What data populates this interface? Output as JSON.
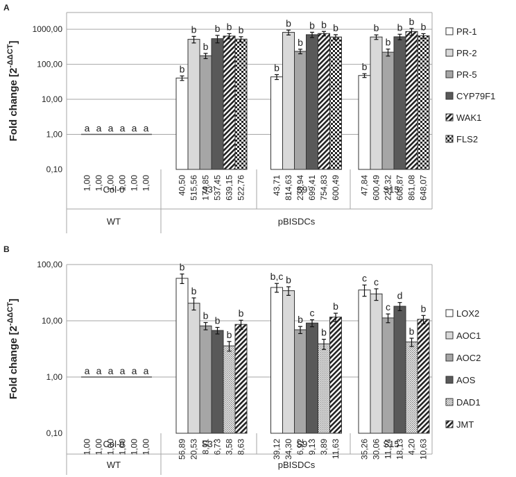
{
  "chart_data": [
    {
      "type": "bar",
      "panel": "A",
      "ylabel": "Fold change",
      "ylabel_formula": "[2^-ΔΔCT]",
      "yscale": "log",
      "ylim": [
        0.1,
        3000
      ],
      "yticks": [
        0.1,
        1,
        10,
        100,
        1000
      ],
      "ytick_labels": [
        "0,10",
        "1,00",
        "10,00",
        "100,00",
        "1000,00"
      ],
      "legend_position": "right",
      "lines": [
        "Col-0",
        "S3´",
        "S9´",
        "S15"
      ],
      "groups": [
        "WT",
        "pBISDCs"
      ],
      "series": [
        {
          "name": "PR-1",
          "fill": "white",
          "values": [
            1.0,
            40.5,
            43.71,
            47.84
          ],
          "labels": [
            "1,00",
            "40,50",
            "43,71",
            "47,84"
          ],
          "errors": [
            0,
            6,
            7,
            6
          ],
          "letters": [
            "a",
            "b",
            "b",
            "b"
          ]
        },
        {
          "name": "PR-2",
          "fill": "lightgray",
          "values": [
            1.0,
            515.56,
            814.63,
            600.49
          ],
          "labels": [
            "1,00",
            "515,56",
            "814,63",
            "600,49"
          ],
          "errors": [
            0,
            110,
            130,
            90
          ],
          "letters": [
            "a",
            "b",
            "b",
            "b"
          ]
        },
        {
          "name": "PR-5",
          "fill": "gray",
          "values": [
            1.0,
            174.85,
            233.94,
            221.32
          ],
          "labels": [
            "1,00",
            "174,85",
            "233,94",
            "221,32"
          ],
          "errors": [
            0,
            30,
            35,
            50
          ],
          "letters": [
            "a",
            "b",
            "b",
            "b"
          ]
        },
        {
          "name": "CYP79F1",
          "fill": "darkgray",
          "values": [
            1.0,
            537.45,
            699.41,
            608.87
          ],
          "labels": [
            "1,00",
            "537,45",
            "699,41",
            "608,87"
          ],
          "errors": [
            0,
            130,
            120,
            110
          ],
          "letters": [
            "a",
            "b",
            "b",
            "b"
          ]
        },
        {
          "name": "WAK1",
          "fill": "hatch",
          "values": [
            1.0,
            639.15,
            754.83,
            861.08
          ],
          "labels": [
            "1,00",
            "639,15",
            "754,83",
            "861,08"
          ],
          "errors": [
            0,
            110,
            110,
            190
          ],
          "letters": [
            "a",
            "b",
            "b",
            "b"
          ]
        },
        {
          "name": "FLS2",
          "fill": "check",
          "values": [
            1.0,
            522.76,
            600.49,
            648.07
          ],
          "labels": [
            "1,00",
            "522,76",
            "600,49",
            "648,07"
          ],
          "errors": [
            0,
            90,
            100,
            100
          ],
          "letters": [
            "a",
            "b",
            "b",
            "b"
          ]
        }
      ]
    },
    {
      "type": "bar",
      "panel": "B",
      "ylabel": "Fold change",
      "ylabel_formula": "[2^-ΔΔCT]",
      "yscale": "log",
      "ylim": [
        0.1,
        100
      ],
      "yticks": [
        0.1,
        1,
        10,
        100
      ],
      "ytick_labels": [
        "0,10",
        "1,00",
        "10,00",
        "100,00"
      ],
      "legend_position": "right",
      "lines": [
        "Col-0",
        "S3´",
        "S9´",
        "S15"
      ],
      "groups": [
        "WT",
        "pBISDCs"
      ],
      "series": [
        {
          "name": "LOX2",
          "fill": "white",
          "values": [
            1.0,
            56.89,
            39.12,
            35.26
          ],
          "labels": [
            "1,00",
            "56,89",
            "39,12",
            "35,26"
          ],
          "errors": [
            0,
            11,
            7,
            8
          ],
          "letters": [
            "a",
            "b",
            "b,c",
            "c"
          ]
        },
        {
          "name": "AOC1",
          "fill": "lightgray",
          "values": [
            1.0,
            20.53,
            34.3,
            30.06
          ],
          "labels": [
            "1,00",
            "20,53",
            "34,30",
            "30,06"
          ],
          "errors": [
            0,
            5,
            6,
            7
          ],
          "letters": [
            "a",
            "b",
            "b",
            "c"
          ]
        },
        {
          "name": "AOC2",
          "fill": "gray",
          "values": [
            1.0,
            8.11,
            6.92,
            11.24
          ],
          "labels": [
            "1,00",
            "8,11",
            "6,92",
            "11,24"
          ],
          "errors": [
            0,
            1.2,
            1.0,
            2.0
          ],
          "letters": [
            "a",
            "b",
            "b",
            "c"
          ]
        },
        {
          "name": "AOS",
          "fill": "darkgray",
          "values": [
            1.0,
            6.73,
            9.13,
            18.13
          ],
          "labels": [
            "1,00",
            "6,73",
            "9,13",
            "18,13"
          ],
          "errors": [
            0,
            0.9,
            1.3,
            3.0
          ],
          "letters": [
            "a",
            "b",
            "c",
            "d"
          ]
        },
        {
          "name": "DAD1",
          "fill": "dots",
          "values": [
            1.0,
            3.58,
            3.89,
            4.2
          ],
          "labels": [
            "1,00",
            "3,58",
            "3,89",
            "4,20"
          ],
          "errors": [
            0,
            0.7,
            0.8,
            0.7
          ],
          "letters": [
            "a",
            "b",
            "b",
            "b"
          ]
        },
        {
          "name": "JMT",
          "fill": "hatch",
          "values": [
            1.0,
            8.63,
            11.63,
            10.63
          ],
          "labels": [
            "1,00",
            "8,63",
            "11,63",
            "10,63"
          ],
          "errors": [
            0,
            1.6,
            2.0,
            1.8
          ],
          "letters": [
            "a",
            "b",
            "b",
            "b"
          ]
        }
      ]
    }
  ]
}
